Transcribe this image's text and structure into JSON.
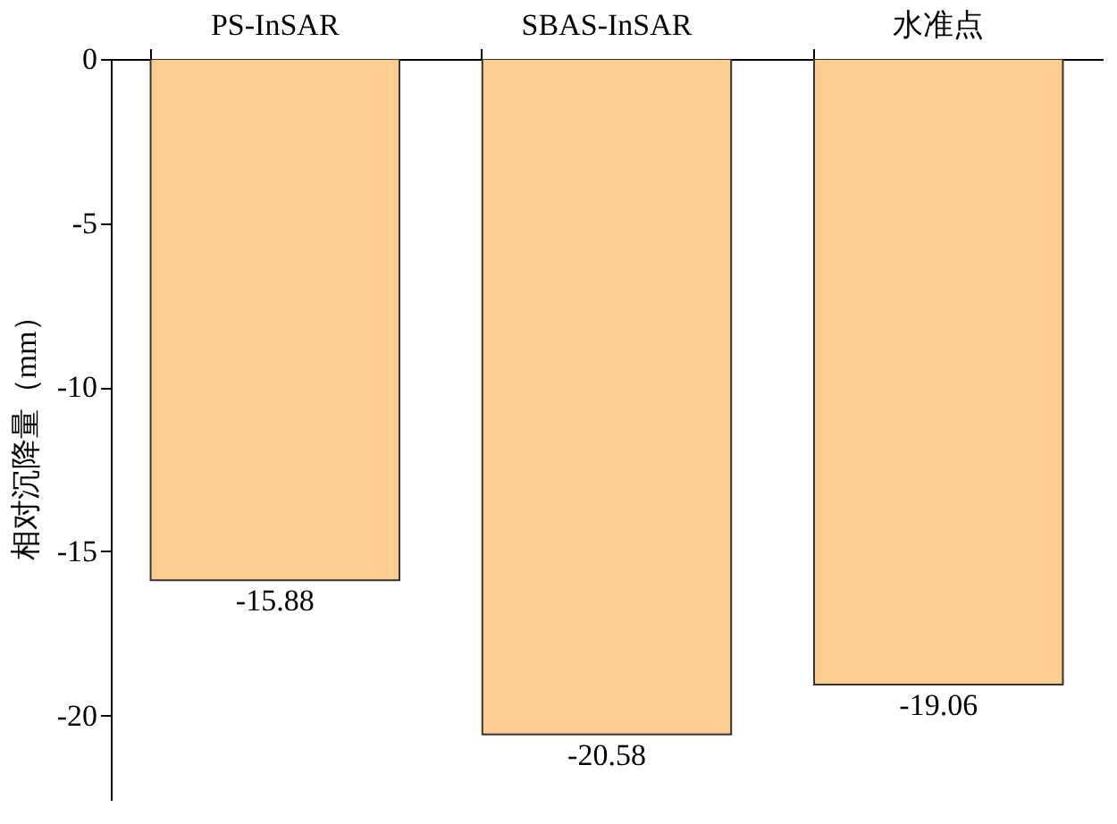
{
  "chart_data": {
    "type": "bar",
    "ylabel": "相对沉降量（mm）",
    "categories": [
      "PS-InSAR",
      "SBAS-InSAR",
      "水准点"
    ],
    "values": [
      -15.88,
      -20.58,
      -19.06
    ],
    "color": "#fdcc8f",
    "ylim": [
      -22.6,
      0
    ],
    "yticks": [
      0,
      -5,
      -10,
      -15,
      -20
    ],
    "grid": false,
    "data_labels": true
  }
}
